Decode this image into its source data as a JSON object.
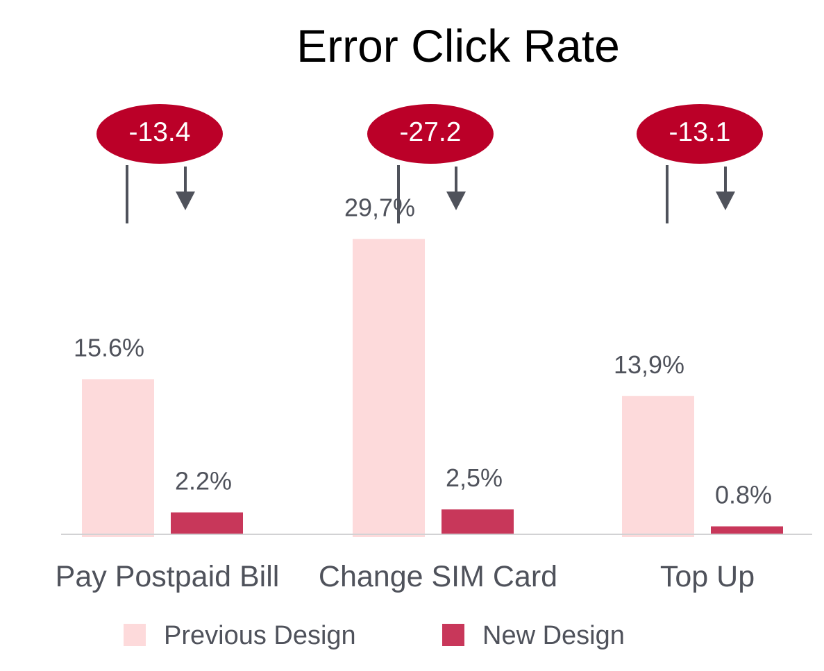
{
  "chart_data": {
    "type": "bar",
    "title": "Error Click Rate",
    "categories": [
      "Pay Postpaid Bill",
      "Change SIM Card",
      "Top Up"
    ],
    "series": [
      {
        "name": "Previous Design",
        "values": [
          15.6,
          29.7,
          13.9
        ],
        "labels": [
          "15.6%",
          "29,7%",
          "13,9%"
        ],
        "color": "#fddadb"
      },
      {
        "name": "New Design",
        "values": [
          2.2,
          2.5,
          0.8
        ],
        "labels": [
          "2.2%",
          "2,5%",
          "0.8%"
        ],
        "color": "#c8375a"
      }
    ],
    "differences": [
      "-13.4",
      "-27.2",
      "-13.1"
    ],
    "difference_color": "#bb0028",
    "arrow_color": "#4f525b",
    "ylim": [
      0,
      30
    ],
    "legend": "bottom"
  }
}
